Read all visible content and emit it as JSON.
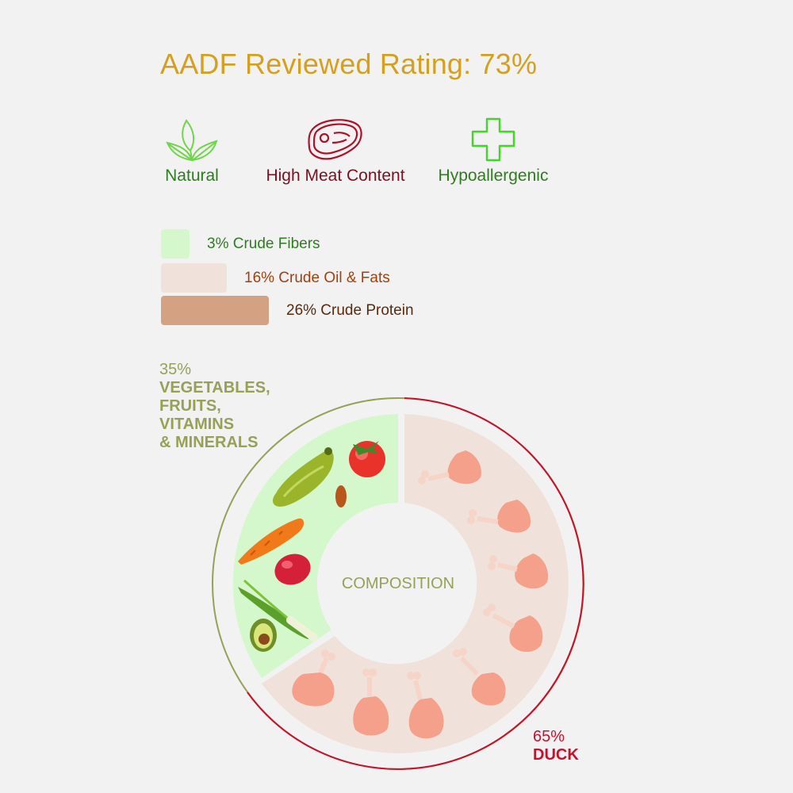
{
  "title": "AADF Reviewed Rating: 73%",
  "rating_percent": 73,
  "features": {
    "natural": {
      "label": "Natural",
      "icon": "leaves-icon",
      "color": "#2e7d20"
    },
    "meat": {
      "label": "High Meat Content",
      "icon": "steak-icon",
      "color": "#7a1020"
    },
    "hypo": {
      "label": "Hypoallergenic",
      "icon": "cross-icon",
      "color": "#2e7d20"
    }
  },
  "nutrients": [
    {
      "label": "3% Crude Fibers",
      "percent": 3,
      "color": "#d4f8cc",
      "text_color": "#2e7d20"
    },
    {
      "label": "16% Crude Oil & Fats",
      "percent": 16,
      "color": "#f0e2da",
      "text_color": "#a04010"
    },
    {
      "label": "26% Crude Protein",
      "percent": 26,
      "color": "#d4a283",
      "text_color": "#5a2a0a"
    }
  ],
  "composition": {
    "center_label": "COMPOSITION",
    "segments": [
      {
        "percent_label": "35%",
        "name_lines": [
          "VEGETABLES,",
          "FRUITS,",
          "VITAMINS",
          "& MINERALS"
        ],
        "value": 35,
        "fill": "#d4f8cc",
        "ring": "#98a058"
      },
      {
        "percent_label": "65%",
        "name_lines": [
          "DUCK"
        ],
        "value": 65,
        "fill": "#f0e2da",
        "ring": "#c8102e"
      }
    ]
  }
}
